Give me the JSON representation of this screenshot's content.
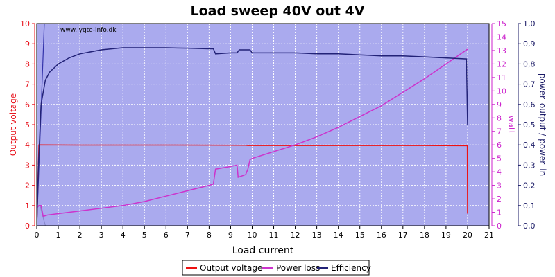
{
  "chart_data": {
    "type": "line",
    "title": "Load sweep 40V out 4V",
    "watermark": "www.lygte-info.dk",
    "xlabel": "Load current",
    "xlim": [
      0,
      21
    ],
    "xticks": [
      "0",
      "1",
      "2",
      "3",
      "4",
      "5",
      "6",
      "7",
      "8",
      "9",
      "10",
      "11",
      "12",
      "13",
      "14",
      "15",
      "16",
      "17",
      "18",
      "19",
      "20",
      "21"
    ],
    "left_axis": {
      "label": "Output voltage",
      "color": "#e8101a",
      "ylim": [
        0,
        10
      ],
      "ticks": [
        "0",
        "1",
        "2",
        "3",
        "4",
        "5",
        "6",
        "7",
        "8",
        "9",
        "10"
      ]
    },
    "watt_axis": {
      "label": "watt",
      "color": "#cc22cc",
      "ylim": [
        0,
        15
      ],
      "ticks": [
        "0",
        "1",
        "2",
        "3",
        "4",
        "5",
        "6",
        "7",
        "8",
        "9",
        "10",
        "11",
        "12",
        "13",
        "14",
        "15"
      ]
    },
    "right_axis": {
      "label": "power_output / power_in",
      "color": "#1a1a66",
      "ylim": [
        0,
        1
      ],
      "ticks": [
        "0,0",
        "0,1",
        "0,2",
        "0,3",
        "0,4",
        "0,5",
        "0,6",
        "0,7",
        "0,8",
        "0,9",
        "1,0"
      ]
    },
    "plot_background": "#aaaaee",
    "grid": true,
    "legend_position": "bottom-center",
    "series": [
      {
        "name": "Output voltage",
        "axis": "left",
        "color": "#ee1111",
        "points": [
          [
            0.0,
            0.0
          ],
          [
            0.1,
            4.0
          ],
          [
            2.0,
            3.99
          ],
          [
            6.0,
            3.99
          ],
          [
            9.7,
            3.98
          ],
          [
            9.8,
            3.97
          ],
          [
            14.0,
            3.97
          ],
          [
            18.0,
            3.97
          ],
          [
            19.99,
            3.96
          ],
          [
            20.0,
            0.6
          ]
        ]
      },
      {
        "name": "Power loss",
        "axis": "watt",
        "color": "#cc33cc",
        "points": [
          [
            0.0,
            1.3
          ],
          [
            0.1,
            1.5
          ],
          [
            0.2,
            1.5
          ],
          [
            0.3,
            0.7
          ],
          [
            0.5,
            0.8
          ],
          [
            1.0,
            0.9
          ],
          [
            2.0,
            1.1
          ],
          [
            3.0,
            1.3
          ],
          [
            4.0,
            1.5
          ],
          [
            5.0,
            1.8
          ],
          [
            6.0,
            2.2
          ],
          [
            7.0,
            2.6
          ],
          [
            8.0,
            3.0
          ],
          [
            8.2,
            3.1
          ],
          [
            8.3,
            4.2
          ],
          [
            9.0,
            4.4
          ],
          [
            9.3,
            4.5
          ],
          [
            9.35,
            3.6
          ],
          [
            9.7,
            3.8
          ],
          [
            9.8,
            4.2
          ],
          [
            9.9,
            4.9
          ],
          [
            10.0,
            5.0
          ],
          [
            11.0,
            5.5
          ],
          [
            12.0,
            6.0
          ],
          [
            13.0,
            6.6
          ],
          [
            14.0,
            7.3
          ],
          [
            15.0,
            8.1
          ],
          [
            16.0,
            8.9
          ],
          [
            17.0,
            9.9
          ],
          [
            18.0,
            10.9
          ],
          [
            19.0,
            12.0
          ],
          [
            20.0,
            13.1
          ]
        ]
      },
      {
        "name": "Efficiency",
        "axis": "right",
        "color": "#222277",
        "points": [
          [
            0.0,
            0.0
          ],
          [
            0.08,
            0.3
          ],
          [
            0.2,
            0.6
          ],
          [
            0.4,
            0.72
          ],
          [
            0.6,
            0.76
          ],
          [
            1.0,
            0.8
          ],
          [
            1.5,
            0.83
          ],
          [
            2.0,
            0.85
          ],
          [
            3.0,
            0.87
          ],
          [
            4.0,
            0.88
          ],
          [
            5.0,
            0.88
          ],
          [
            6.0,
            0.88
          ],
          [
            7.0,
            0.878
          ],
          [
            8.0,
            0.875
          ],
          [
            8.2,
            0.875
          ],
          [
            8.3,
            0.85
          ],
          [
            9.0,
            0.855
          ],
          [
            9.3,
            0.855
          ],
          [
            9.4,
            0.87
          ],
          [
            9.9,
            0.87
          ],
          [
            10.0,
            0.855
          ],
          [
            11.0,
            0.855
          ],
          [
            12.0,
            0.855
          ],
          [
            13.0,
            0.85
          ],
          [
            14.0,
            0.85
          ],
          [
            15.0,
            0.845
          ],
          [
            16.0,
            0.84
          ],
          [
            17.0,
            0.84
          ],
          [
            18.0,
            0.835
          ],
          [
            19.0,
            0.83
          ],
          [
            19.95,
            0.825
          ],
          [
            20.0,
            0.5
          ]
        ]
      },
      {
        "name": "",
        "axis": "left",
        "color": "#3333aa",
        "points": [
          [
            0.0,
            0.0
          ],
          [
            0.35,
            10.0
          ]
        ]
      },
      {
        "name": "",
        "axis": "left",
        "color": "#8888cc",
        "points": [
          [
            0.15,
            1.0
          ],
          [
            0.4,
            0.0
          ]
        ]
      }
    ]
  }
}
